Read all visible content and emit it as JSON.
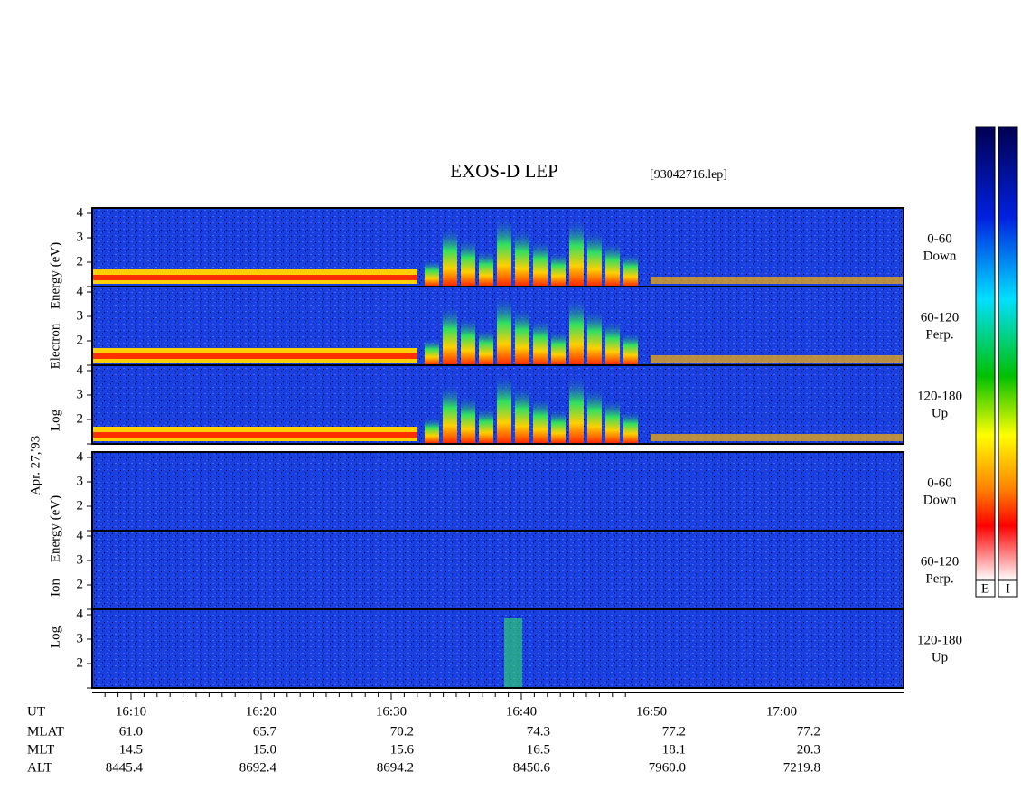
{
  "title": "EXOS-D LEP",
  "file": "[93042716.lep]",
  "electron_label": [
    "Log",
    "Electron",
    "Energy (eV)"
  ],
  "ion_label": [
    "Log",
    "Ion",
    "Energy (eV)"
  ],
  "date": "Apr. 27,'93",
  "electron_panels": [
    {
      "angle": "0-60",
      "dir": "Down"
    },
    {
      "angle": "60-120",
      "dir": "Perp."
    },
    {
      "angle": "120-180",
      "dir": "Up"
    }
  ],
  "ion_panels": [
    {
      "angle": "0-60",
      "dir": "Down"
    },
    {
      "angle": "60-120",
      "dir": "Perp."
    },
    {
      "angle": "120-180",
      "dir": "Up"
    }
  ],
  "yticks": [
    "4",
    "3",
    "2"
  ],
  "colorbars": [
    "E",
    "I"
  ],
  "rows": [
    {
      "name": "UT",
      "values": [
        "16:10",
        "16:20",
        "16:30",
        "16:40",
        "16:50",
        "17:00"
      ]
    },
    {
      "name": "MLAT",
      "values": [
        "61.0",
        "65.7",
        "70.2",
        "74.3",
        "77.2",
        "77.2"
      ]
    },
    {
      "name": "MLT",
      "values": [
        "14.5",
        "15.0",
        "15.6",
        "16.5",
        "18.1",
        "20.3"
      ]
    },
    {
      "name": "ALT",
      "values": [
        "8445.4",
        "8692.4",
        "8694.2",
        "8450.6",
        "7960.0",
        "7219.8"
      ]
    }
  ]
}
